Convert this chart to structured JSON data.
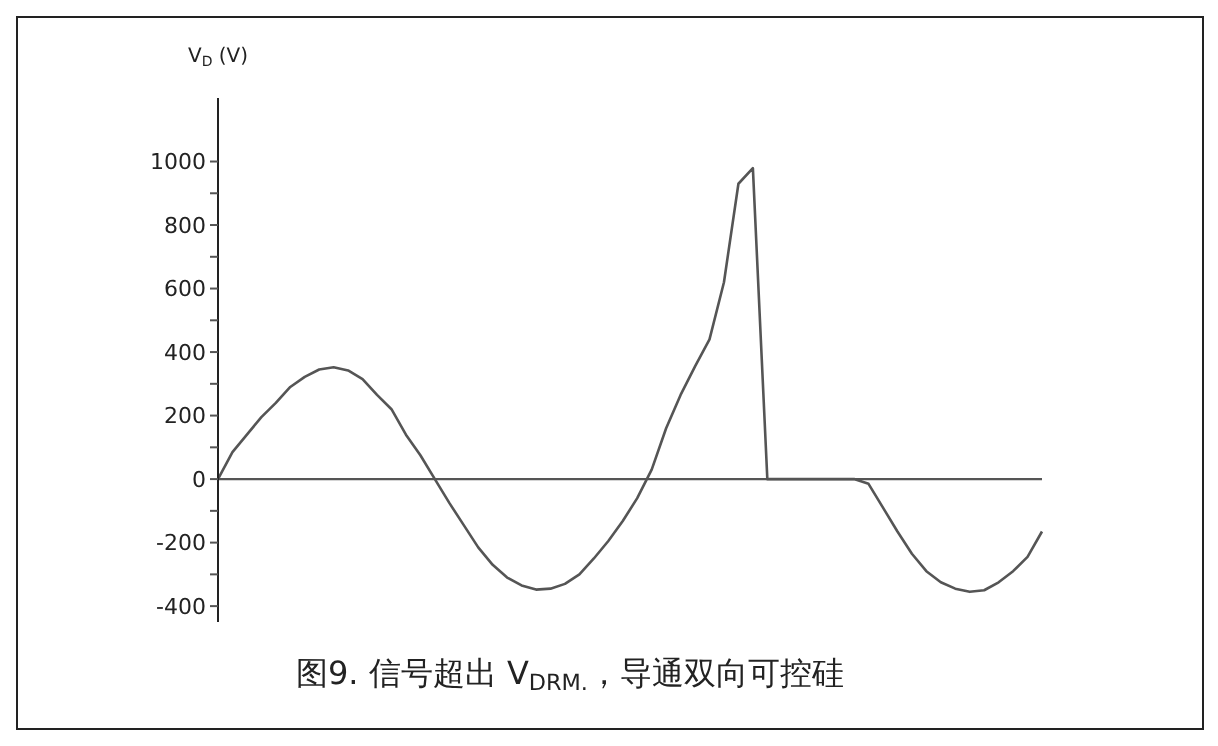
{
  "chart_data": {
    "type": "line",
    "title": "图9. 信号超出 V$_{DRM.}$，导通双向可控硅",
    "ylabel": "V$_{D}$ (V)",
    "categories": [
      null,
      null,
      null,
      null,
      null,
      null,
      null,
      null,
      null,
      null,
      null,
      null,
      null,
      null,
      null,
      null,
      null,
      null,
      null,
      null,
      null,
      null,
      null,
      null,
      null,
      null,
      null,
      null,
      null,
      null,
      null,
      null,
      null,
      null,
      null,
      null,
      null,
      null,
      null,
      null,
      null,
      null,
      null,
      null,
      null,
      null,
      null,
      null,
      null,
      null,
      null,
      null,
      null,
      null,
      null,
      null,
      null,
      null
    ],
    "series": [
      {
        "color": "#555555",
        "values": [
          0,
          85,
          140,
          195,
          240,
          290,
          322,
          345,
          352,
          342,
          315,
          265,
          220,
          140,
          75,
          0,
          -75,
          -145,
          -215,
          -270,
          -310,
          -335,
          -348,
          -345,
          -330,
          -300,
          -250,
          -195,
          -132,
          -60,
          30,
          160,
          265,
          355,
          440,
          620,
          930,
          979,
          0,
          0,
          0,
          0,
          0,
          0,
          0,
          -15,
          -90,
          -165,
          -235,
          -290,
          -325,
          -345,
          -355,
          -350,
          -325,
          -290,
          -245,
          -165
        ]
      }
    ],
    "ylim": [
      -450,
      1200
    ],
    "yticks": [
      {
        "value": -400,
        "label": "-400"
      },
      {
        "value": -300,
        "label": null
      },
      {
        "value": -200,
        "label": "-200"
      },
      {
        "value": -100,
        "label": null
      },
      0,
      {
        "value": 100,
        "label": null
      },
      200,
      {
        "value": 300,
        "label": null
      },
      400,
      {
        "value": 500,
        "label": null
      },
      600,
      {
        "value": 700,
        "label": null
      },
      800,
      {
        "value": 900,
        "label": null
      },
      1000
    ],
    "ref_lines": [
      {
        "axis": "y",
        "value": 0,
        "color": "#555555"
      }
    ],
    "tick_labels": "y",
    "marker": "none",
    "line_style": "solid"
  }
}
